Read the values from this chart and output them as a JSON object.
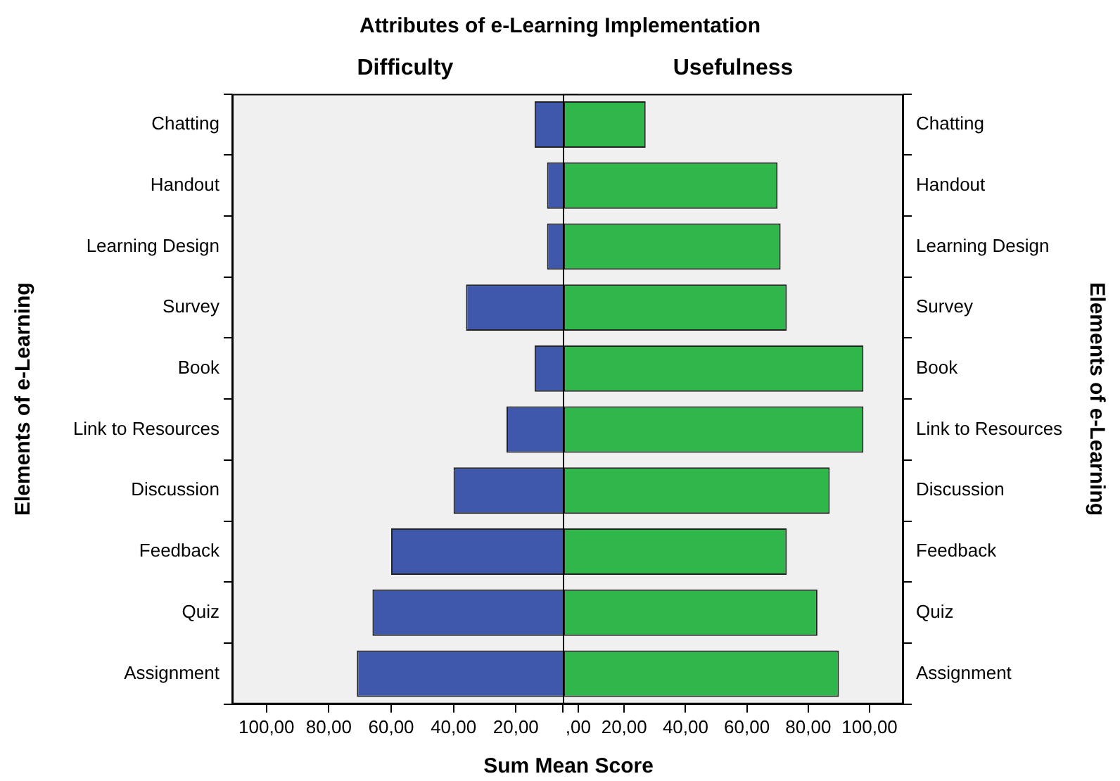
{
  "chart_data": [
    {
      "type": "bar",
      "orientation": "horizontal",
      "title": "Attributes of e-Learning Implementation",
      "subtitle": "Difficulty",
      "ylabel": "Elements of e-Learning",
      "categories": [
        "Chatting",
        "Handout",
        "Learning Design",
        "Survey",
        "Book",
        "Link to Resources",
        "Discussion",
        "Feedback",
        "Quiz",
        "Assignment"
      ],
      "series": [
        {
          "color": "#3f58ac",
          "values": [
            14,
            10,
            10,
            36,
            14,
            23,
            40,
            60,
            66,
            71
          ]
        }
      ],
      "xlim": [
        111,
        0
      ],
      "xticks": [
        {
          "value": 100,
          "label": "100,00"
        },
        {
          "value": 80,
          "label": "80,00"
        },
        {
          "value": 60,
          "label": "60,00"
        },
        {
          "value": 40,
          "label": "40,00"
        },
        {
          "value": 20,
          "label": "20,00"
        },
        {
          "value": 0,
          "label": ",00"
        }
      ],
      "grid": false,
      "legend": false
    },
    {
      "type": "bar",
      "orientation": "horizontal",
      "subtitle": "Usefulness",
      "ylabel": "Elements of e-Learning",
      "xlabel": "Sum Mean Score",
      "categories": [
        "Chatting",
        "Handout",
        "Learning Design",
        "Survey",
        "Book",
        "Link to Resources",
        "Discussion",
        "Feedback",
        "Quiz",
        "Assignment"
      ],
      "series": [
        {
          "color": "#2fb74a",
          "values": [
            27,
            70,
            71,
            73,
            98,
            98,
            87,
            73,
            83,
            90
          ]
        }
      ],
      "xlim": [
        0,
        111
      ],
      "xticks": [
        {
          "value": 0,
          "label": null
        },
        {
          "value": 20,
          "label": "20,00"
        },
        {
          "value": 40,
          "label": "40,00"
        },
        {
          "value": 60,
          "label": "60,00"
        },
        {
          "value": 80,
          "label": "80,00"
        },
        {
          "value": 100,
          "label": "100,00"
        }
      ],
      "grid": false,
      "legend": false
    }
  ]
}
